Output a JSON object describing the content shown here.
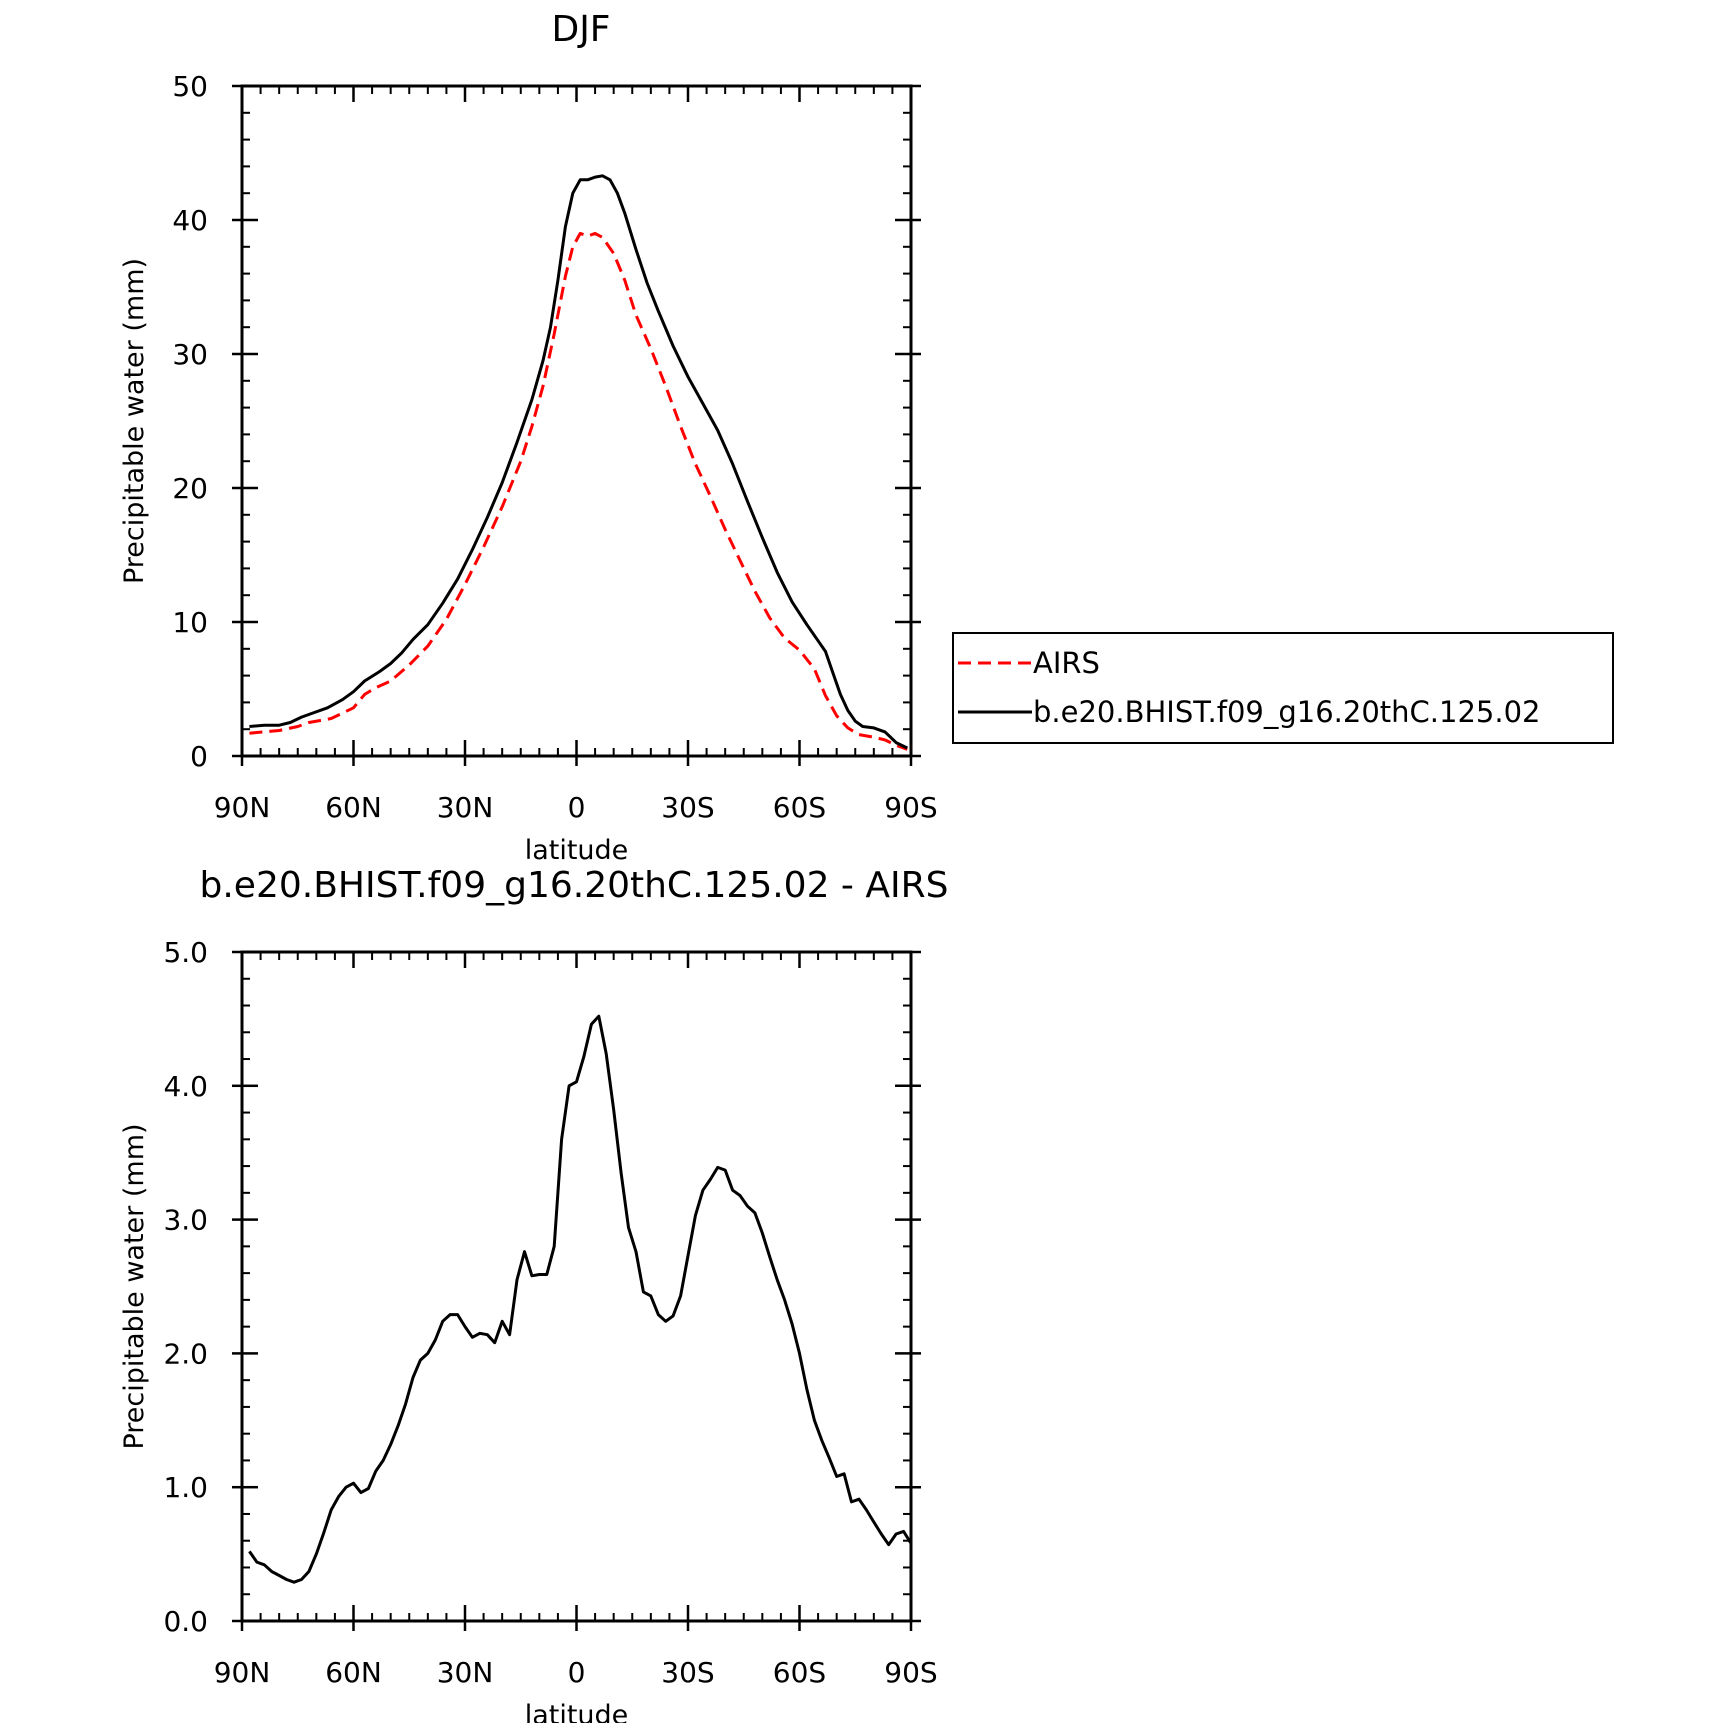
{
  "chart_data": [
    {
      "type": "line",
      "title": "DJF",
      "xlabel": "latitude",
      "ylabel": "Precipitable water (mm)",
      "xlim": [
        90,
        -90
      ],
      "ylim": [
        0,
        50
      ],
      "x_ticks": [
        90,
        60,
        30,
        0,
        -30,
        -60,
        -90
      ],
      "x_tick_labels": [
        "90N",
        "60N",
        "30N",
        "0",
        "30S",
        "60S",
        "90S"
      ],
      "y_ticks": [
        0,
        10,
        20,
        30,
        40,
        50
      ],
      "y_tick_labels": [
        "0",
        "10",
        "20",
        "30",
        "40",
        "50"
      ],
      "grid": false,
      "legend_position": "right",
      "colors": {
        "AIRS": "#ff0000",
        "model": "#000000"
      },
      "series": [
        {
          "name": "AIRS",
          "style": "dashed",
          "color": "#ff0000",
          "points": [
            [
              88,
              1.7
            ],
            [
              80,
              1.9
            ],
            [
              75,
              2.2
            ],
            [
              72,
              2.5
            ],
            [
              66,
              2.8
            ],
            [
              60,
              3.6
            ],
            [
              57,
              4.6
            ],
            [
              54,
              5.1
            ],
            [
              50,
              5.6
            ],
            [
              45,
              6.8
            ],
            [
              40,
              8.2
            ],
            [
              35,
              10.2
            ],
            [
              30,
              12.8
            ],
            [
              25,
              15.6
            ],
            [
              20,
              18.6
            ],
            [
              15,
              22.0
            ],
            [
              12,
              24.6
            ],
            [
              9,
              27.6
            ],
            [
              6,
              31.5
            ],
            [
              3,
              35.8
            ],
            [
              1,
              38.0
            ],
            [
              -1,
              39.0
            ],
            [
              -3,
              38.8
            ],
            [
              -5,
              39.0
            ],
            [
              -7,
              38.7
            ],
            [
              -10,
              37.5
            ],
            [
              -13,
              35.5
            ],
            [
              -16,
              32.9
            ],
            [
              -20,
              30.4
            ],
            [
              -24,
              27.6
            ],
            [
              -28,
              24.6
            ],
            [
              -32,
              21.8
            ],
            [
              -36,
              19.4
            ],
            [
              -40,
              16.9
            ],
            [
              -44,
              14.6
            ],
            [
              -48,
              12.3
            ],
            [
              -52,
              10.3
            ],
            [
              -56,
              8.8
            ],
            [
              -60,
              7.9
            ],
            [
              -64,
              6.5
            ],
            [
              -67,
              4.5
            ],
            [
              -70,
              3.0
            ],
            [
              -73,
              2.1
            ],
            [
              -76,
              1.6
            ],
            [
              -80,
              1.4
            ],
            [
              -83,
              1.2
            ],
            [
              -86,
              0.8
            ],
            [
              -89,
              0.5
            ]
          ]
        },
        {
          "name": "b.e20.BHIST.f09_g16.20thC.125.02",
          "style": "solid",
          "color": "#000000",
          "points": [
            [
              88,
              2.2
            ],
            [
              84,
              2.3
            ],
            [
              80,
              2.3
            ],
            [
              77,
              2.5
            ],
            [
              74,
              2.9
            ],
            [
              71,
              3.2
            ],
            [
              67,
              3.6
            ],
            [
              63,
              4.2
            ],
            [
              60,
              4.8
            ],
            [
              57,
              5.6
            ],
            [
              53,
              6.3
            ],
            [
              50,
              6.9
            ],
            [
              47,
              7.7
            ],
            [
              44,
              8.7
            ],
            [
              40,
              9.8
            ],
            [
              36,
              11.4
            ],
            [
              32,
              13.2
            ],
            [
              28,
              15.4
            ],
            [
              24,
              17.8
            ],
            [
              20,
              20.4
            ],
            [
              16,
              23.4
            ],
            [
              12,
              26.6
            ],
            [
              9,
              29.5
            ],
            [
              7,
              32.0
            ],
            [
              5,
              35.5
            ],
            [
              3,
              39.5
            ],
            [
              1,
              42.0
            ],
            [
              -1,
              43.0
            ],
            [
              -3,
              43.0
            ],
            [
              -5,
              43.2
            ],
            [
              -7,
              43.3
            ],
            [
              -9,
              43.0
            ],
            [
              -11,
              42.0
            ],
            [
              -13,
              40.5
            ],
            [
              -16,
              37.8
            ],
            [
              -19,
              35.3
            ],
            [
              -22,
              33.2
            ],
            [
              -26,
              30.6
            ],
            [
              -30,
              28.3
            ],
            [
              -34,
              26.3
            ],
            [
              -38,
              24.3
            ],
            [
              -42,
              21.8
            ],
            [
              -46,
              19.0
            ],
            [
              -50,
              16.3
            ],
            [
              -54,
              13.7
            ],
            [
              -58,
              11.5
            ],
            [
              -62,
              9.8
            ],
            [
              -65,
              8.6
            ],
            [
              -67,
              7.8
            ],
            [
              -69,
              6.2
            ],
            [
              -71,
              4.6
            ],
            [
              -73,
              3.4
            ],
            [
              -75,
              2.6
            ],
            [
              -77,
              2.2
            ],
            [
              -80,
              2.1
            ],
            [
              -83,
              1.8
            ],
            [
              -86,
              1.0
            ],
            [
              -89,
              0.6
            ]
          ]
        }
      ]
    },
    {
      "type": "line",
      "title": "b.e20.BHIST.f09_g16.20thC.125.02 - AIRS",
      "xlabel": "latitude",
      "ylabel": "Precipitable water (mm)",
      "xlim": [
        90,
        -90
      ],
      "ylim": [
        0,
        5
      ],
      "x_ticks": [
        90,
        60,
        30,
        0,
        -30,
        -60,
        -90
      ],
      "x_tick_labels": [
        "90N",
        "60N",
        "30N",
        "0",
        "30S",
        "60S",
        "90S"
      ],
      "y_ticks": [
        0,
        1,
        2,
        3,
        4,
        5
      ],
      "y_tick_labels": [
        "0.0",
        "1.0",
        "2.0",
        "3.0",
        "4.0",
        "5.0"
      ],
      "grid": false,
      "series": [
        {
          "style": "solid",
          "color": "#000000",
          "points": [
            [
              88,
              0.52
            ],
            [
              86,
              0.44
            ],
            [
              84,
              0.42
            ],
            [
              82,
              0.37
            ],
            [
              80,
              0.34
            ],
            [
              78,
              0.31
            ],
            [
              76,
              0.29
            ],
            [
              74,
              0.31
            ],
            [
              72,
              0.37
            ],
            [
              70,
              0.5
            ],
            [
              68,
              0.66
            ],
            [
              66,
              0.83
            ],
            [
              64,
              0.93
            ],
            [
              62,
              1.0
            ],
            [
              60,
              1.03
            ],
            [
              58,
              0.96
            ],
            [
              56,
              0.99
            ],
            [
              54,
              1.12
            ],
            [
              52,
              1.2
            ],
            [
              50,
              1.32
            ],
            [
              48,
              1.46
            ],
            [
              46,
              1.62
            ],
            [
              44,
              1.82
            ],
            [
              42,
              1.95
            ],
            [
              40,
              2.0
            ],
            [
              38,
              2.1
            ],
            [
              36,
              2.24
            ],
            [
              34,
              2.29
            ],
            [
              32,
              2.29
            ],
            [
              30,
              2.2
            ],
            [
              28,
              2.12
            ],
            [
              26,
              2.15
            ],
            [
              24,
              2.14
            ],
            [
              22,
              2.08
            ],
            [
              20,
              2.24
            ],
            [
              18,
              2.14
            ],
            [
              16,
              2.55
            ],
            [
              14,
              2.76
            ],
            [
              12,
              2.58
            ],
            [
              10,
              2.59
            ],
            [
              8,
              2.59
            ],
            [
              6,
              2.8
            ],
            [
              4,
              3.6
            ],
            [
              2,
              4.0
            ],
            [
              0,
              4.03
            ],
            [
              -2,
              4.22
            ],
            [
              -4,
              4.46
            ],
            [
              -6,
              4.52
            ],
            [
              -8,
              4.24
            ],
            [
              -10,
              3.82
            ],
            [
              -12,
              3.35
            ],
            [
              -14,
              2.94
            ],
            [
              -16,
              2.76
            ],
            [
              -18,
              2.46
            ],
            [
              -20,
              2.43
            ],
            [
              -22,
              2.29
            ],
            [
              -24,
              2.24
            ],
            [
              -26,
              2.28
            ],
            [
              -28,
              2.43
            ],
            [
              -30,
              2.73
            ],
            [
              -32,
              3.03
            ],
            [
              -34,
              3.22
            ],
            [
              -36,
              3.3
            ],
            [
              -38,
              3.39
            ],
            [
              -40,
              3.37
            ],
            [
              -42,
              3.22
            ],
            [
              -44,
              3.18
            ],
            [
              -46,
              3.1
            ],
            [
              -48,
              3.05
            ],
            [
              -50,
              2.9
            ],
            [
              -52,
              2.72
            ],
            [
              -54,
              2.55
            ],
            [
              -56,
              2.4
            ],
            [
              -58,
              2.22
            ],
            [
              -60,
              2.0
            ],
            [
              -62,
              1.73
            ],
            [
              -64,
              1.5
            ],
            [
              -66,
              1.35
            ],
            [
              -68,
              1.22
            ],
            [
              -70,
              1.08
            ],
            [
              -72,
              1.1
            ],
            [
              -74,
              0.89
            ],
            [
              -76,
              0.91
            ],
            [
              -78,
              0.83
            ],
            [
              -80,
              0.74
            ],
            [
              -82,
              0.65
            ],
            [
              -84,
              0.57
            ],
            [
              -86,
              0.65
            ],
            [
              -88,
              0.67
            ],
            [
              -90,
              0.58
            ]
          ]
        }
      ]
    }
  ]
}
